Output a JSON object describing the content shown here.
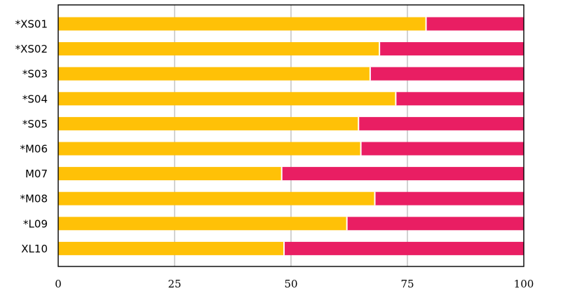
{
  "chart_data": {
    "type": "bar",
    "orientation": "horizontal",
    "stacked": true,
    "categories": [
      "*XS01",
      "*XS02",
      "*S03",
      "*S04",
      "*S05",
      "*M06",
      "M07",
      "*M08",
      "*L09",
      "XL10"
    ],
    "series": [
      {
        "values": [
          79,
          69,
          67,
          72.5,
          64.5,
          65,
          48,
          68,
          62,
          48.5
        ],
        "color": "#ffc107"
      },
      {
        "values": [
          21,
          31,
          33,
          27.5,
          35.5,
          35,
          52,
          32,
          38,
          51.5
        ],
        "color": "#e91e63"
      }
    ],
    "xlim": [
      0,
      100
    ],
    "xticks": [
      "0",
      "25",
      "50",
      "75",
      "100"
    ],
    "xtick_values": [
      0,
      25,
      50,
      75,
      100
    ],
    "grid": "vertical",
    "legend": "none"
  }
}
